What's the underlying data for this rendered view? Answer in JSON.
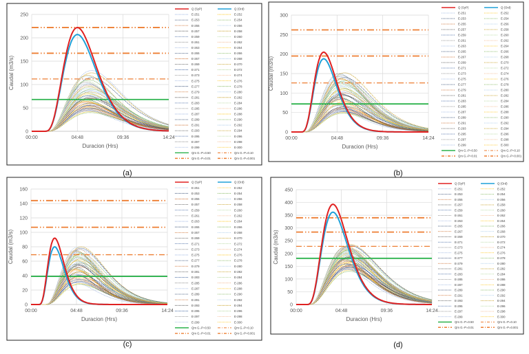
{
  "ensemble_names": [
    "E-251",
    "E-252",
    "E-253",
    "E-254",
    "E-255",
    "E-256",
    "E-257",
    "E-258",
    "E-259",
    "E-260",
    "E-261",
    "E-262",
    "E-263",
    "E-264",
    "E-265",
    "E-266",
    "E-267",
    "E-268",
    "E-269",
    "E-270",
    "E-271",
    "E-272",
    "E-273",
    "E-274",
    "E-275",
    "E-276",
    "E-277",
    "E-278",
    "E-279",
    "E-280",
    "E-281",
    "E-282",
    "E-283",
    "E-284",
    "E-285",
    "E-286",
    "E-287",
    "E-288",
    "E-289",
    "E-290",
    "E-291",
    "E-292",
    "E-293",
    "E-294",
    "E-295",
    "E-296",
    "E-297",
    "E-298",
    "E-299",
    "E-300"
  ],
  "ensemble_colors": [
    "#8faadc",
    "#ffc000",
    "#1f3864",
    "#70ad47",
    "#c55a11",
    "#9dc3e6",
    "#404040",
    "#bf9000",
    "#2f5597",
    "#a9d18e",
    "#7f7f7f",
    "#f4b183"
  ],
  "chart_data": [
    {
      "panel_label": "(a)",
      "type": "line",
      "xlabel": "Duracion (Hrs)",
      "ylabel": "Caudal (m3/s)",
      "xticks": [
        "00:00",
        "04:48",
        "09:36",
        "14:24"
      ],
      "xlim_hours": [
        0,
        14.4
      ],
      "ylim": [
        0,
        250
      ],
      "yticks": [
        "0",
        "50",
        "100",
        "150",
        "200",
        "250"
      ],
      "grid": true,
      "legend": "right",
      "series": [
        {
          "name": "Q (SyP)",
          "color": "#e02020",
          "peak": 222,
          "peak_time_h": 4.8,
          "start_h": 1.3
        },
        {
          "name": "Q (Ord)",
          "color": "#1fa0d8",
          "peak": 207,
          "peak_time_h": 4.8,
          "start_h": 1.3
        }
      ],
      "ensemble_peak_time_h": 6.0,
      "ensemble_start_h": 1.6,
      "ensemble_peaks": [
        45,
        52,
        60,
        40,
        70,
        85,
        55,
        95,
        48,
        78,
        105,
        62,
        88,
        42,
        115,
        66,
        50,
        92,
        72,
        125,
        58,
        82,
        100,
        46,
        130,
        64,
        76,
        110,
        54,
        86,
        68,
        120,
        44,
        96,
        74,
        58,
        102,
        80,
        50,
        90,
        63,
        118,
        70,
        84,
        56,
        108,
        47,
        98,
        77,
        60
      ],
      "thresholds": [
        {
          "name": "Qm G.-P=0.50",
          "value": 68,
          "color": "#2bb24c",
          "style": "solid"
        },
        {
          "name": "Qm G.-P=0.10",
          "value": 112,
          "color": "#ed7d31",
          "style": "dashdot-thin"
        },
        {
          "name": "Qm G.-P=0.01",
          "value": 167,
          "color": "#ed7d31",
          "style": "dashdot"
        },
        {
          "name": "Qm G.-P=0.001",
          "value": 222,
          "color": "#ed7d31",
          "style": "dashdot"
        }
      ]
    },
    {
      "panel_label": "(b)",
      "type": "line",
      "xlabel": "Duracion (Hrs)",
      "ylabel": "Caudal (m3/s)",
      "xticks": [
        "00:00",
        "04:48",
        "09:36",
        "14:24"
      ],
      "xlim_hours": [
        0,
        14.4
      ],
      "ylim": [
        0,
        300
      ],
      "yticks": [
        "0",
        "50",
        "100",
        "150",
        "200",
        "250",
        "300"
      ],
      "grid": true,
      "legend": "right",
      "series": [
        {
          "name": "Q (SyP)",
          "color": "#e02020",
          "peak": 205,
          "peak_time_h": 3.4,
          "start_h": 1.0
        },
        {
          "name": "Q (Ord)",
          "color": "#1fa0d8",
          "peak": 188,
          "peak_time_h": 3.4,
          "start_h": 1.0
        }
      ],
      "ensemble_peak_time_h": 5.3,
      "ensemble_start_h": 1.3,
      "ensemble_peaks": [
        55,
        70,
        85,
        48,
        100,
        120,
        62,
        135,
        52,
        110,
        150,
        75,
        125,
        50,
        140,
        90,
        60,
        130,
        95,
        152,
        68,
        115,
        145,
        58,
        105,
        80,
        98,
        128,
        64,
        118,
        88,
        138,
        54,
        122,
        92,
        72,
        142,
        108,
        60,
        132,
        84,
        148,
        96,
        112,
        66,
        126,
        57,
        136,
        102,
        78
      ],
      "thresholds": [
        {
          "name": "Qm G.-P=0.50",
          "value": 72,
          "color": "#2bb24c",
          "style": "solid"
        },
        {
          "name": "Qm G.-P=0.10",
          "value": 126,
          "color": "#ed7d31",
          "style": "dashdot-thin"
        },
        {
          "name": "Qm G.-P=0.01",
          "value": 195,
          "color": "#ed7d31",
          "style": "dashdot"
        },
        {
          "name": "Qm G.-P=0.001",
          "value": 262,
          "color": "#ed7d31",
          "style": "dashdot"
        }
      ]
    },
    {
      "panel_label": "(c)",
      "type": "line",
      "xlabel": "Duracion (Hrs)",
      "ylabel": "Caudal (m3/s)",
      "xticks": [
        "00:00",
        "04:48",
        "09:36",
        "14:24"
      ],
      "xlim_hours": [
        0,
        14.4
      ],
      "ylim": [
        0,
        160
      ],
      "yticks": [
        "0",
        "20",
        "40",
        "60",
        "80",
        "100",
        "120",
        "140",
        "160"
      ],
      "grid": true,
      "legend": "right",
      "series": [
        {
          "name": "Q (SyP)",
          "color": "#e02020",
          "peak": 92,
          "peak_time_h": 2.5,
          "start_h": 0.8
        },
        {
          "name": "Q (Ord)",
          "color": "#1fa0d8",
          "peak": 80,
          "peak_time_h": 2.5,
          "start_h": 0.8
        }
      ],
      "ensemble_peak_time_h": 5.0,
      "ensemble_start_h": 1.5,
      "ensemble_peaks": [
        30,
        38,
        45,
        28,
        52,
        62,
        40,
        70,
        32,
        58,
        75,
        47,
        65,
        29,
        78,
        50,
        36,
        68,
        55,
        80,
        42,
        60,
        72,
        33,
        76,
        48,
        56,
        66,
        39,
        64,
        52,
        74,
        31,
        69,
        57,
        44,
        73,
        61,
        35,
        71,
        49,
        79,
        54,
        63,
        41,
        67,
        34,
        77,
        59,
        46
      ],
      "thresholds": [
        {
          "name": "Qm G.-P=0.50",
          "value": 39,
          "color": "#2bb24c",
          "style": "solid"
        },
        {
          "name": "Qm G.-P=0.10",
          "value": 69,
          "color": "#ed7d31",
          "style": "dashdot-thin"
        },
        {
          "name": "Qm G.-P=0.01",
          "value": 107,
          "color": "#ed7d31",
          "style": "dashdot"
        },
        {
          "name": "Qm G.-P=0.001",
          "value": 144,
          "color": "#ed7d31",
          "style": "dashdot"
        }
      ]
    },
    {
      "panel_label": "(d)",
      "type": "line",
      "xlabel": "Duracion (Hrs)",
      "ylabel": "Caudal (m3/s)",
      "xticks": [
        "00:00",
        "04:48",
        "09:36",
        "14:24"
      ],
      "xlim_hours": [
        0,
        14.4
      ],
      "ylim": [
        0,
        450
      ],
      "yticks": [
        "0",
        "50",
        "100",
        "150",
        "200",
        "250",
        "300",
        "350",
        "400",
        "450"
      ],
      "grid": true,
      "legend": "right",
      "series": [
        {
          "name": "Q (SyP)",
          "color": "#e02020",
          "peak": 393,
          "peak_time_h": 3.9,
          "start_h": 1.1
        },
        {
          "name": "Q (Ord)",
          "color": "#1fa0d8",
          "peak": 362,
          "peak_time_h": 3.9,
          "start_h": 1.1
        }
      ],
      "ensemble_peak_time_h": 5.5,
      "ensemble_start_h": 1.3,
      "ensemble_peaks": [
        140,
        155,
        170,
        130,
        185,
        200,
        160,
        215,
        145,
        190,
        225,
        168,
        205,
        135,
        230,
        175,
        150,
        210,
        188,
        235,
        158,
        195,
        220,
        142,
        232,
        165,
        182,
        212,
        152,
        198,
        178,
        228,
        138,
        208,
        186,
        162,
        222,
        192,
        148,
        218,
        172,
        226,
        184,
        202,
        156,
        216,
        144,
        224,
        194,
        166
      ],
      "thresholds": [
        {
          "name": "Qm G.-P=0.50",
          "value": 181,
          "color": "#2bb24c",
          "style": "solid"
        },
        {
          "name": "Qm G.-P=0.10",
          "value": 228,
          "color": "#ed7d31",
          "style": "dashdot-thin"
        },
        {
          "name": "Qm G.-P=0.01",
          "value": 284,
          "color": "#ed7d31",
          "style": "dashdot"
        },
        {
          "name": "Qm G.-P=0.001",
          "value": 340,
          "color": "#ed7d31",
          "style": "dashdot"
        }
      ]
    }
  ]
}
